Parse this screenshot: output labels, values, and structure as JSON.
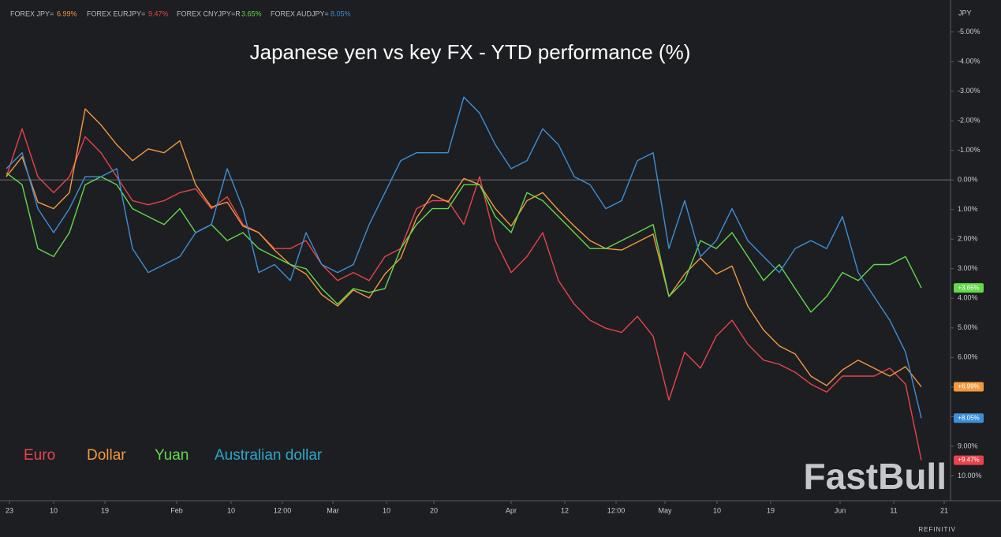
{
  "chart_data": {
    "type": "line",
    "title": "Japanese yen vs key FX - YTD performance (%)",
    "y_axis_label": "JPY",
    "provider": "REFINITIV",
    "watermark": "FastBull",
    "x": [
      0,
      2,
      4,
      6,
      8,
      10,
      12,
      14,
      16,
      18,
      20,
      22,
      24,
      26,
      28,
      30,
      32,
      34,
      36,
      38,
      40,
      42,
      44,
      46,
      48,
      50,
      52,
      54,
      56,
      58,
      60,
      62,
      64,
      66,
      68,
      70,
      72,
      74,
      76,
      78,
      80,
      82,
      84,
      86,
      88,
      90,
      92,
      94,
      96,
      98,
      100,
      102,
      104,
      106,
      108,
      110,
      112,
      114,
      116
    ],
    "xlim": [
      0,
      119.7
    ],
    "xticks": [
      {
        "value": 0.4,
        "label": "23"
      },
      {
        "value": 6,
        "label": "10"
      },
      {
        "value": 12.5,
        "label": "19"
      },
      {
        "value": 21.6,
        "label": "Feb"
      },
      {
        "value": 28.5,
        "label": "10"
      },
      {
        "value": 35,
        "label": "12:00"
      },
      {
        "value": 41.4,
        "label": "Mar"
      },
      {
        "value": 48.2,
        "label": "10"
      },
      {
        "value": 54.2,
        "label": "20"
      },
      {
        "value": 64,
        "label": "Apr"
      },
      {
        "value": 70.8,
        "label": "12"
      },
      {
        "value": 77.3,
        "label": "12:00"
      },
      {
        "value": 83.5,
        "label": "May"
      },
      {
        "value": 90.1,
        "label": "10"
      },
      {
        "value": 96.9,
        "label": "19"
      },
      {
        "value": 105.7,
        "label": "Jun"
      },
      {
        "value": 112.5,
        "label": "11"
      },
      {
        "value": 118.9,
        "label": "21"
      }
    ],
    "ylim": [
      10.84,
      -6.08
    ],
    "yticks": [
      {
        "value": -5,
        "label": "-5.00%"
      },
      {
        "value": -4,
        "label": "-4.00%"
      },
      {
        "value": -3,
        "label": "-3.00%"
      },
      {
        "value": -2,
        "label": "-2.00%"
      },
      {
        "value": -1,
        "label": "-1.00%"
      },
      {
        "value": 0,
        "label": "0.00%"
      },
      {
        "value": 1,
        "label": "1.00%"
      },
      {
        "value": 2,
        "label": "2.00%"
      },
      {
        "value": 3,
        "label": "3.00%"
      },
      {
        "value": 4,
        "label": "4.00%"
      },
      {
        "value": 5,
        "label": "5.00%"
      },
      {
        "value": 6,
        "label": "6.00%"
      },
      {
        "value": 7,
        "label": "7.00%"
      },
      {
        "value": 8,
        "label": "8.00%"
      },
      {
        "value": 9,
        "label": "9.00%"
      },
      {
        "value": 10,
        "label": "10.00%"
      }
    ],
    "zero_line": 0,
    "series": [
      {
        "name": "Euro",
        "ric": "FOREX EURJPY=",
        "quote": "9.47%",
        "last_label": "+9.47%",
        "color": "#e8434c",
        "values": [
          -0.11,
          -1.73,
          -0.11,
          0.43,
          -0.11,
          -1.46,
          -0.92,
          -0.11,
          0.7,
          0.84,
          0.7,
          0.43,
          0.3,
          0.97,
          0.57,
          1.51,
          1.78,
          2.32,
          2.32,
          2.05,
          2.86,
          3.4,
          3.13,
          3.4,
          2.59,
          2.32,
          0.97,
          0.7,
          0.7,
          1.51,
          -0.11,
          2.05,
          3.13,
          2.59,
          1.78,
          3.4,
          4.2,
          4.74,
          5.01,
          5.15,
          4.61,
          5.28,
          7.44,
          5.82,
          6.36,
          5.28,
          4.74,
          5.55,
          6.09,
          6.23,
          6.5,
          6.9,
          7.17,
          6.63,
          6.63,
          6.63,
          6.36,
          6.9,
          9.47
        ]
      },
      {
        "name": "Dollar",
        "ric": "FOREX JPY=",
        "quote": "6.99%",
        "last_label": "+6.99%",
        "color": "#f3993c",
        "values": [
          -0.11,
          -0.78,
          0.75,
          0.97,
          0.43,
          -2.4,
          -1.86,
          -1.19,
          -0.65,
          -1.05,
          -0.92,
          -1.32,
          0.16,
          0.92,
          0.75,
          1.56,
          1.78,
          2.37,
          2.86,
          3.18,
          3.88,
          4.26,
          3.72,
          3.99,
          3.18,
          2.64,
          1.29,
          0.49,
          0.75,
          -0.05,
          0.16,
          0.97,
          1.56,
          0.7,
          0.43,
          1.02,
          1.56,
          2.05,
          2.32,
          2.37,
          2.1,
          1.83,
          3.94,
          3.18,
          2.64,
          3.18,
          2.91,
          4.26,
          5.07,
          5.61,
          5.88,
          6.63,
          6.95,
          6.42,
          6.09,
          6.36,
          6.63,
          6.31,
          6.99
        ]
      },
      {
        "name": "Yuan",
        "ric": "FOREX CNYJPY=R",
        "quote": "3.65%",
        "last_label": "+3.65%",
        "color": "#62d94a",
        "values": [
          -0.24,
          0.16,
          2.32,
          2.59,
          1.78,
          0.16,
          -0.11,
          0.16,
          0.97,
          1.24,
          1.51,
          0.97,
          1.78,
          1.51,
          2.05,
          1.78,
          2.32,
          2.59,
          2.86,
          3.0,
          3.67,
          4.2,
          3.67,
          3.8,
          3.67,
          2.32,
          1.51,
          0.97,
          0.97,
          0.16,
          0.16,
          1.24,
          1.78,
          0.43,
          0.7,
          1.24,
          1.78,
          2.32,
          2.32,
          2.05,
          1.78,
          1.51,
          3.94,
          3.4,
          2.05,
          2.32,
          1.78,
          2.59,
          3.4,
          2.86,
          3.67,
          4.47,
          3.94,
          3.13,
          3.4,
          2.86,
          2.86,
          2.59,
          3.65
        ]
      },
      {
        "name": "Australian dollar",
        "ric": "FOREX AUDJPY=",
        "quote": "8.05%",
        "last_label": "+8.05%",
        "color": "#3d8fd6",
        "values": [
          -0.38,
          -0.92,
          0.97,
          1.78,
          0.97,
          -0.11,
          -0.11,
          -0.38,
          2.32,
          3.13,
          2.86,
          2.59,
          1.78,
          1.51,
          -0.38,
          0.97,
          3.13,
          2.86,
          3.4,
          1.78,
          2.86,
          3.13,
          2.86,
          1.51,
          0.43,
          -0.65,
          -0.92,
          -0.92,
          -0.92,
          -2.8,
          -2.26,
          -1.19,
          -0.38,
          -0.65,
          -1.73,
          -1.19,
          -0.11,
          0.16,
          0.97,
          0.7,
          -0.65,
          -0.92,
          2.32,
          0.7,
          2.59,
          2.05,
          0.97,
          2.05,
          2.59,
          3.13,
          2.32,
          2.05,
          2.32,
          1.24,
          3.13,
          3.94,
          4.74,
          5.82,
          8.05
        ]
      }
    ]
  }
}
